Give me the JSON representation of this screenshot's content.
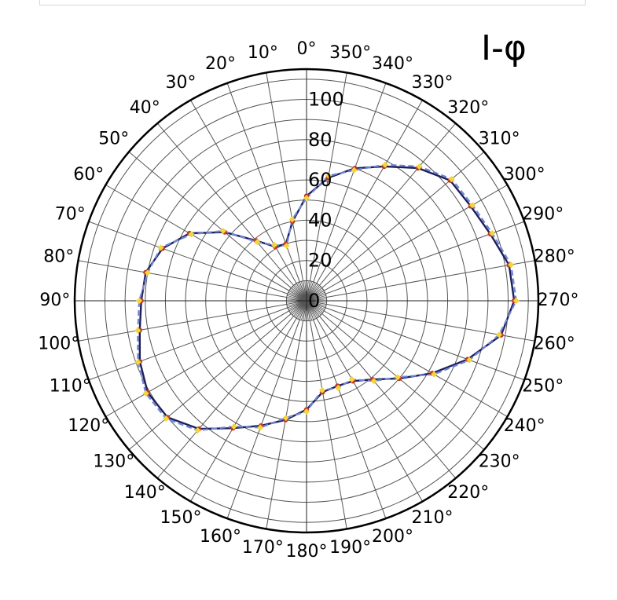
{
  "chart_data": {
    "type": "polar-line",
    "title": "I-φ",
    "angle_zero": "top",
    "angle_direction": "counterclockwise",
    "angle_ticks": [
      "0°",
      "10°",
      "20°",
      "30°",
      "40°",
      "50°",
      "60°",
      "70°",
      "80°",
      "90°",
      "100°",
      "110°",
      "120°",
      "130°",
      "140°",
      "150°",
      "160°",
      "170°",
      "180°",
      "190°",
      "200°",
      "210°",
      "220°",
      "230°",
      "240°",
      "250°",
      "260°",
      "270°",
      "280°",
      "290°",
      "300°",
      "310°",
      "320°",
      "330°",
      "340°",
      "350°"
    ],
    "radial_ticks": [
      "0",
      "20",
      "40",
      "60",
      "80",
      "100"
    ],
    "r_max": 115,
    "grid": true,
    "legend": "none",
    "series": [
      {
        "style": "solid",
        "color": "#1f1f5a",
        "marker_color": "#c0392b",
        "theta": [
          0,
          10,
          20,
          30,
          40,
          50,
          60,
          70,
          80,
          90,
          100,
          110,
          120,
          130,
          140,
          150,
          160,
          170,
          180,
          190,
          200,
          210,
          220,
          230,
          240,
          250,
          260,
          270,
          280,
          290,
          300,
          310,
          320,
          330,
          340,
          350
        ],
        "r": [
          52,
          40,
          30,
          31,
          39,
          53,
          67,
          76,
          81,
          82,
          84,
          88,
          91,
          90,
          83,
          73,
          66,
          60,
          54,
          46,
          45,
          46,
          51,
          60,
          72,
          85,
          98,
          103,
          102,
          97,
          94,
          93,
          86,
          77,
          70,
          62
        ]
      },
      {
        "style": "dashed",
        "color": "#6f86d8",
        "marker_color": "#f2d63a",
        "theta": [
          0,
          10,
          20,
          30,
          40,
          50,
          60,
          70,
          80,
          90,
          100,
          110,
          120,
          130,
          140,
          150,
          160,
          170,
          180,
          190,
          200,
          210,
          220,
          230,
          240,
          250,
          260,
          270,
          280,
          290,
          300,
          310,
          320,
          330,
          340,
          350
        ],
        "r": [
          51,
          41,
          29,
          32,
          38,
          54,
          66,
          77,
          80,
          83,
          85,
          89,
          92,
          91,
          84,
          72,
          67,
          59,
          55,
          45,
          46,
          45,
          52,
          59,
          73,
          86,
          97,
          104,
          103,
          98,
          95,
          94,
          87,
          78,
          69,
          63
        ]
      }
    ],
    "colors": {
      "axis": "#000000",
      "grid": "#555555",
      "background": "#ffffff"
    }
  }
}
